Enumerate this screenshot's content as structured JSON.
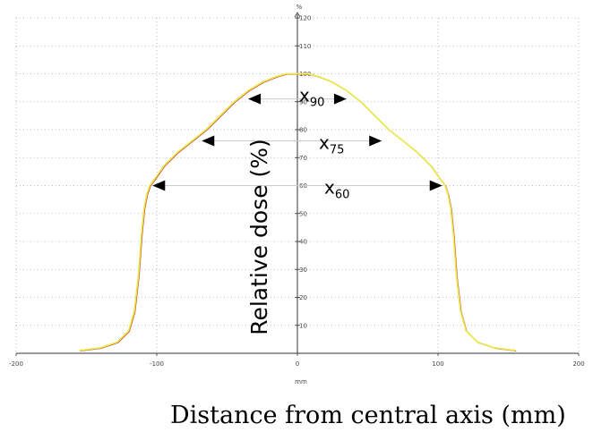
{
  "chart_data": {
    "type": "line",
    "title": "",
    "xlabel": "Distance from central axis (mm)",
    "xunit": "mm",
    "ylabel": "Relative dose (%)",
    "yunit": "%",
    "xlim": [
      -200,
      200
    ],
    "ylim": [
      0,
      120
    ],
    "xticks": [
      -200,
      -100,
      0,
      100,
      200
    ],
    "yticks": [
      10,
      20,
      30,
      40,
      50,
      60,
      70,
      80,
      90,
      100,
      110,
      120
    ],
    "grid": true,
    "legend": "none",
    "series": [
      {
        "color": "#e8e84a",
        "x": [
          -155,
          -140,
          -128,
          -120,
          -116,
          -113,
          -111,
          -109,
          -107,
          -105,
          -102,
          -95,
          -85,
          -75,
          -65,
          -55,
          -45,
          -35,
          -25,
          -15,
          -8,
          0,
          8,
          15,
          25,
          35,
          45,
          55,
          65,
          75,
          85,
          95,
          102,
          105,
          107,
          109,
          111,
          113,
          116,
          120,
          128,
          140,
          155
        ],
        "y": [
          1,
          2,
          4,
          8,
          15,
          28,
          42,
          52,
          57,
          60,
          62,
          67,
          72,
          76,
          80,
          85,
          90,
          94,
          97,
          99,
          100,
          100,
          100,
          99,
          97,
          94,
          90,
          85,
          80,
          76,
          72,
          67,
          62,
          60,
          57,
          52,
          42,
          28,
          15,
          8,
          4,
          2,
          1
        ]
      }
    ],
    "annotations": [
      {
        "label": "x",
        "sub": "90",
        "level": 91,
        "x_left": -35,
        "x_right": 35
      },
      {
        "label": "x",
        "sub": "75",
        "level": 76,
        "x_left": -68,
        "x_right": 60
      },
      {
        "label": "x",
        "sub": "60",
        "level": 60,
        "x_left": -103,
        "x_right": 103
      }
    ]
  }
}
